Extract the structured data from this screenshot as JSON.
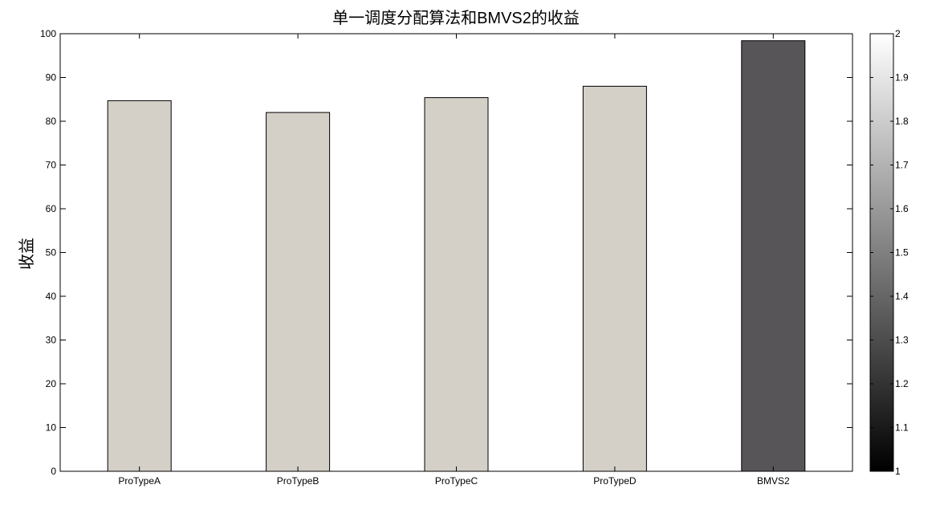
{
  "chart_data": {
    "type": "bar",
    "title": "单一调度分配算法和BMVS2的收益",
    "xlabel": "",
    "ylabel": "收益",
    "categories": [
      "ProTypeA",
      "ProTypeB",
      "ProTypeC",
      "ProTypeD",
      "BMVS2"
    ],
    "values": [
      84.7,
      82.0,
      85.4,
      88.0,
      98.4
    ],
    "ylim": [
      0,
      100
    ],
    "yticks": [
      0,
      10,
      20,
      30,
      40,
      50,
      60,
      70,
      80,
      90,
      100
    ],
    "grid": false,
    "bar_colors": [
      "#d4d0c8",
      "#d4d0c8",
      "#d4d0c8",
      "#d4d0c8",
      "#575557"
    ],
    "colorbar": {
      "range": [
        1,
        2
      ],
      "ticks": [
        "1",
        "1.1",
        "1.2",
        "1.3",
        "1.4",
        "1.5",
        "1.6",
        "1.7",
        "1.8",
        "1.9",
        "2"
      ],
      "color_low": "#000000",
      "color_high": "#ffffff"
    }
  }
}
